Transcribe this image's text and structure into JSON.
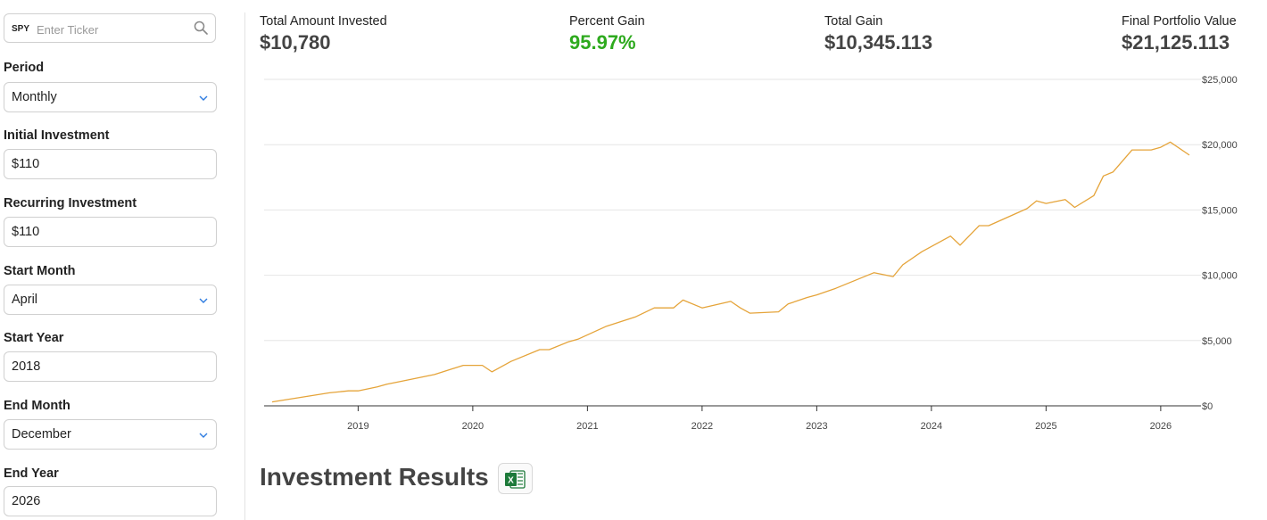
{
  "sidebar": {
    "ticker": {
      "symbol": "SPY",
      "placeholder": "Enter Ticker"
    },
    "fields": {
      "period": {
        "label": "Period",
        "value": "Monthly"
      },
      "initial": {
        "label": "Initial Investment",
        "value": "$110"
      },
      "recurring": {
        "label": "Recurring Investment",
        "value": "$110"
      },
      "start_month": {
        "label": "Start Month",
        "value": "April"
      },
      "start_year": {
        "label": "Start Year",
        "value": "2018"
      },
      "end_month": {
        "label": "End Month",
        "value": "December"
      },
      "end_year": {
        "label": "End Year",
        "value": "2026"
      }
    }
  },
  "summary": {
    "total_invested": {
      "label": "Total Amount Invested",
      "value": "$10,780"
    },
    "percent_gain": {
      "label": "Percent Gain",
      "value": "95.97%"
    },
    "total_gain": {
      "label": "Total Gain",
      "value": "$10,345.113"
    },
    "final_value": {
      "label": "Final Portfolio Value",
      "value": "$21,125.113"
    }
  },
  "results": {
    "title": "Investment Results"
  },
  "colors": {
    "line": "#e5a43a",
    "gain_green": "#2eaa1e",
    "grid": "#e6e6e6",
    "excel_green": "#1d7a3a"
  },
  "icons": {
    "search": "search-icon",
    "chevron": "chevron-down-icon",
    "export": "excel-icon"
  },
  "chart_data": {
    "type": "line",
    "title": "",
    "xlabel": "",
    "ylabel": "",
    "x_ticks": [
      "2019",
      "2020",
      "2021",
      "2022",
      "2023",
      "2024",
      "2025",
      "2026"
    ],
    "y_ticks": [
      "$0",
      "$5,000",
      "$10,000",
      "$15,000",
      "$20,000",
      "$25,000"
    ],
    "ylim": [
      0,
      25000
    ],
    "xlim": [
      "2018-04",
      "2026-04"
    ],
    "grid": true,
    "y_axis_side": "right",
    "series": [
      {
        "x": [
          "2018-04",
          "2018-07",
          "2018-10",
          "2018-12",
          "2019-01",
          "2019-03",
          "2019-04",
          "2019-05",
          "2019-07",
          "2019-09",
          "2019-12",
          "2020-02",
          "2020-03",
          "2020-05",
          "2020-08",
          "2020-09",
          "2020-11",
          "2020-12",
          "2021-03",
          "2021-06",
          "2021-08",
          "2021-10",
          "2021-11",
          "2022-01",
          "2022-04",
          "2022-05",
          "2022-06",
          "2022-09",
          "2022-10",
          "2022-12",
          "2023-01",
          "2023-03",
          "2023-07",
          "2023-09",
          "2023-10",
          "2023-12",
          "2024-03",
          "2024-04",
          "2024-06",
          "2024-07",
          "2024-11",
          "2024-12",
          "2025-01",
          "2025-03",
          "2025-04",
          "2025-06",
          "2025-07",
          "2025-08",
          "2025-10",
          "2025-12",
          "2026-01",
          "2026-02",
          "2026-04"
        ],
        "values": [
          300,
          650,
          1000,
          1150,
          1150,
          1450,
          1650,
          1800,
          2100,
          2400,
          3100,
          3100,
          2600,
          3400,
          4300,
          4300,
          4900,
          5100,
          6100,
          6800,
          7500,
          7500,
          8100,
          7500,
          8000,
          7500,
          7100,
          7200,
          7800,
          8300,
          8500,
          9000,
          10200,
          9900,
          10800,
          11800,
          13000,
          12300,
          13800,
          13800,
          15100,
          15700,
          15500,
          15800,
          15200,
          16100,
          17600,
          17900,
          19600,
          19600,
          19800,
          20200,
          19200
        ]
      }
    ]
  }
}
